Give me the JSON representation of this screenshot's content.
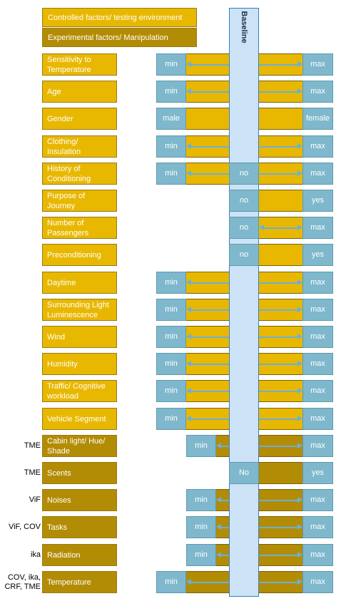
{
  "legend": {
    "controlled": "Controlled factors/ testing environment",
    "experimental": "Experimental factors/ Manipulation"
  },
  "baseline_label": "Baseline",
  "colors": {
    "controlled": "#e8b800",
    "experimental": "#b38c05",
    "value_box": "#7fb8cc",
    "baseline": "#cce3f7",
    "arrow": "#6ab0d8"
  },
  "factors": [
    {
      "label": "Sensitivity to Temperature",
      "type": "controlled",
      "left": "min",
      "right": "max",
      "arrow": true
    },
    {
      "label": "Age",
      "type": "controlled",
      "left": "min",
      "right": "max",
      "arrow": true
    },
    {
      "label": "Gender",
      "type": "controlled",
      "left": "male",
      "right": "female",
      "arrow": false
    },
    {
      "label": "Clothing/ Insulation",
      "type": "controlled",
      "left": "min",
      "right": "max",
      "arrow": true
    },
    {
      "label": "History of Conditioning",
      "type": "controlled",
      "left": "min",
      "mid": "no",
      "right": "max",
      "arrow": true
    },
    {
      "label": "Purpose of Journey",
      "type": "controlled",
      "mid": "no",
      "right": "yes",
      "arrow": false
    },
    {
      "label": "Number of Passengers",
      "type": "controlled",
      "mid": "no",
      "right": "max",
      "arrow": true
    },
    {
      "label": "Preconditioning",
      "type": "controlled",
      "mid": "no",
      "right": "yes",
      "arrow": false
    },
    {
      "label": "Daytime",
      "type": "controlled",
      "left": "min",
      "right": "max",
      "arrow": true
    },
    {
      "label": "Surrounding Light Luminescence",
      "type": "controlled",
      "left": "min",
      "right": "max",
      "arrow": true
    },
    {
      "label": "Wind",
      "type": "controlled",
      "left": "min",
      "right": "max",
      "arrow": true
    },
    {
      "label": "Humidity",
      "type": "controlled",
      "left": "min",
      "right": "max",
      "arrow": true
    },
    {
      "label": "Traffic/ Cognitive workload",
      "type": "controlled",
      "left": "min",
      "right": "max",
      "arrow": true
    },
    {
      "label": "Vehicle Segment",
      "type": "controlled",
      "left": "min",
      "right": "max",
      "arrow": true
    },
    {
      "label": "Cabin light/ Hue/ Shade",
      "type": "experimental",
      "source": "TME",
      "inner": "min",
      "right": "max",
      "arrow": true
    },
    {
      "label": "Scents",
      "type": "experimental",
      "source": "TME",
      "mid": "No",
      "right": "yes",
      "arrow": false
    },
    {
      "label": "Noises",
      "type": "experimental",
      "source": "ViF",
      "inner": "min",
      "right": "max",
      "arrow": true
    },
    {
      "label": "Tasks",
      "type": "experimental",
      "source": "ViF, COV",
      "inner": "min",
      "right": "max",
      "arrow": true
    },
    {
      "label": "Radiation",
      "type": "experimental",
      "source": "ika",
      "inner": "min",
      "right": "max",
      "arrow": true
    },
    {
      "label": "Temperature",
      "type": "experimental",
      "source": "COV, ika, CRF, TME",
      "left": "min",
      "right": "max",
      "arrow": true
    }
  ]
}
